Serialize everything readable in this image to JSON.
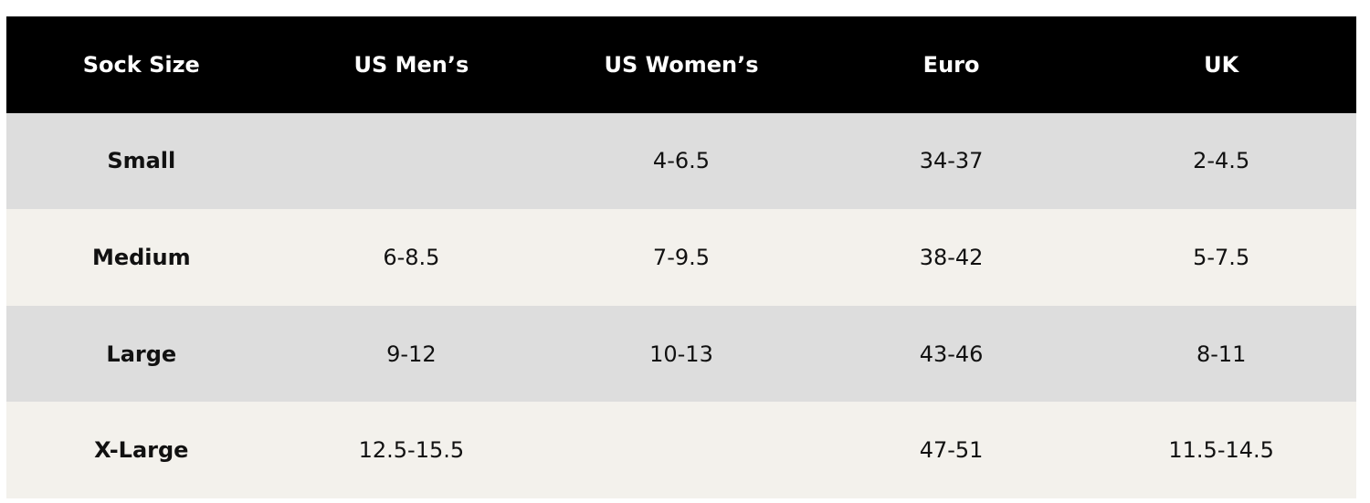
{
  "table": {
    "header": [
      "Sock Size",
      "US Men’s",
      "US Women’s",
      "Euro",
      "UK"
    ],
    "rows": [
      [
        "Small",
        null,
        "4-6.5",
        "34-37",
        "2-4.5"
      ],
      [
        "Medium",
        "6-8.5",
        "7-9.5",
        "38-42",
        "5-7.5"
      ],
      [
        "Large",
        "9-12",
        "10-13",
        "43-46",
        "8-11"
      ],
      [
        "X-Large",
        "12.5-15.5",
        null,
        "47-51",
        "11.5-14.5"
      ]
    ]
  }
}
